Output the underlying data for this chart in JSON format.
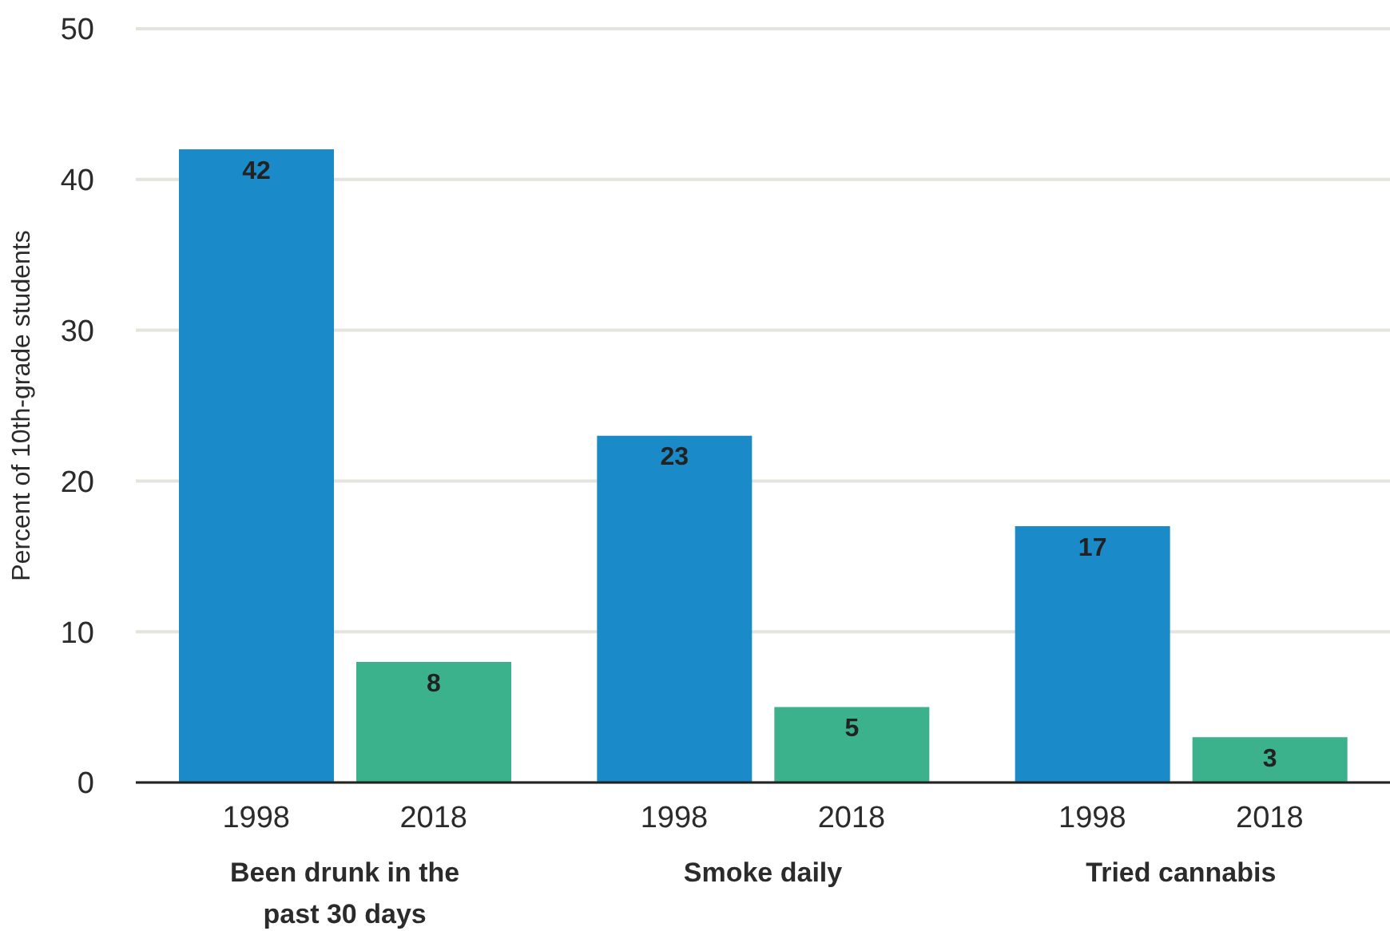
{
  "chart_data": {
    "type": "bar",
    "ylabel": "Percent of 10th-grade students",
    "categories": [
      "Been drunk in the past 30 days",
      "Smoke daily",
      "Tried cannabis"
    ],
    "series": [
      {
        "name": "1998",
        "color": "#1b8ac9",
        "values": [
          42,
          23,
          17
        ]
      },
      {
        "name": "2018",
        "color": "#3bb28b",
        "values": [
          8,
          5,
          3
        ]
      }
    ],
    "ylim": [
      0,
      50
    ],
    "yticks": [
      0,
      10,
      20,
      30,
      40,
      50
    ],
    "grid": "y",
    "data_labels": true,
    "legend": false
  }
}
